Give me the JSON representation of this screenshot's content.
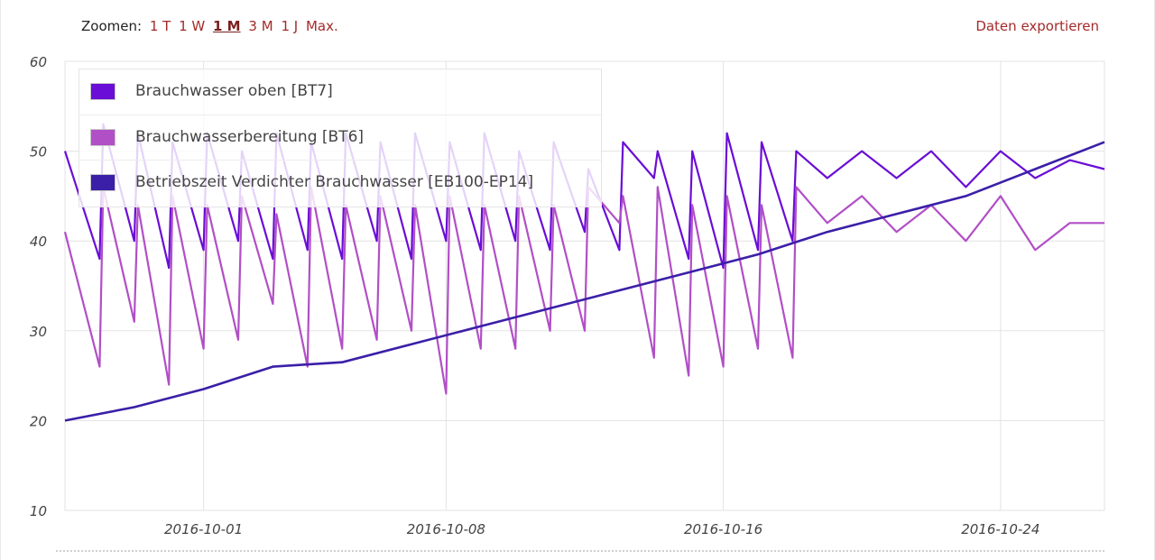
{
  "toolbar": {
    "zoom_label": "Zoomen:",
    "zoom_options": [
      "1 T",
      "1 W",
      "1 M",
      "3 M",
      "1 J",
      "Max."
    ],
    "zoom_active": "1 M",
    "export_label": "Daten exportieren"
  },
  "colors": {
    "link": "#a52a2a",
    "series_bt7": "#6a0dd6",
    "series_bt6": "#b14fc6",
    "series_runtime": "#3b1fa8",
    "grid": "#e3e3e3"
  },
  "chart_data": {
    "type": "line",
    "title": "",
    "xlabel": "",
    "ylabel": "",
    "ylim": [
      10,
      60
    ],
    "yticks": [
      10,
      20,
      30,
      40,
      50,
      60
    ],
    "x_range": [
      "2016-09-27",
      "2016-10-27"
    ],
    "xticks": [
      "2016-10-01",
      "2016-10-08",
      "2016-10-16",
      "2016-10-24"
    ],
    "grid": true,
    "legend_position": "top-left",
    "series": [
      {
        "name": "Brauchwasser oben [BT7]",
        "color": "#6a0dd6",
        "x": [
          "2016-09-27",
          "2016-09-28",
          "2016-09-28",
          "2016-09-29",
          "2016-09-29",
          "2016-09-30",
          "2016-09-30",
          "2016-10-01",
          "2016-10-01",
          "2016-10-02",
          "2016-10-02",
          "2016-10-03",
          "2016-10-03",
          "2016-10-04",
          "2016-10-04",
          "2016-10-05",
          "2016-10-05",
          "2016-10-06",
          "2016-10-06",
          "2016-10-07",
          "2016-10-07",
          "2016-10-08",
          "2016-10-08",
          "2016-10-09",
          "2016-10-09",
          "2016-10-10",
          "2016-10-10",
          "2016-10-11",
          "2016-10-11",
          "2016-10-12",
          "2016-10-12",
          "2016-10-13",
          "2016-10-13",
          "2016-10-14",
          "2016-10-14",
          "2016-10-15",
          "2016-10-15",
          "2016-10-16",
          "2016-10-16",
          "2016-10-17",
          "2016-10-17",
          "2016-10-18",
          "2016-10-18",
          "2016-10-19",
          "2016-10-20",
          "2016-10-21",
          "2016-10-22",
          "2016-10-23",
          "2016-10-24",
          "2016-10-25",
          "2016-10-26",
          "2016-10-27"
        ],
        "values": [
          50,
          38,
          53,
          40,
          52,
          37,
          51,
          39,
          52,
          40,
          50,
          38,
          52,
          39,
          51,
          38,
          52,
          40,
          51,
          38,
          52,
          40,
          51,
          39,
          52,
          40,
          50,
          39,
          51,
          41,
          48,
          39,
          51,
          47,
          50,
          38,
          50,
          37,
          52,
          39,
          51,
          40,
          50,
          47,
          50,
          47,
          50,
          46,
          50,
          47,
          49,
          48
        ]
      },
      {
        "name": "Brauchwasserbereitung [BT6]",
        "color": "#b14fc6",
        "x": [
          "2016-09-27",
          "2016-09-28",
          "2016-09-28",
          "2016-09-29",
          "2016-09-29",
          "2016-09-30",
          "2016-09-30",
          "2016-10-01",
          "2016-10-01",
          "2016-10-02",
          "2016-10-02",
          "2016-10-03",
          "2016-10-03",
          "2016-10-04",
          "2016-10-04",
          "2016-10-05",
          "2016-10-05",
          "2016-10-06",
          "2016-10-06",
          "2016-10-07",
          "2016-10-07",
          "2016-10-08",
          "2016-10-08",
          "2016-10-09",
          "2016-10-09",
          "2016-10-10",
          "2016-10-10",
          "2016-10-11",
          "2016-10-11",
          "2016-10-12",
          "2016-10-12",
          "2016-10-13",
          "2016-10-13",
          "2016-10-14",
          "2016-10-14",
          "2016-10-15",
          "2016-10-15",
          "2016-10-16",
          "2016-10-16",
          "2016-10-17",
          "2016-10-17",
          "2016-10-18",
          "2016-10-18",
          "2016-10-19",
          "2016-10-20",
          "2016-10-21",
          "2016-10-22",
          "2016-10-23",
          "2016-10-24",
          "2016-10-25",
          "2016-10-26",
          "2016-10-27"
        ],
        "values": [
          41,
          26,
          46,
          31,
          44,
          24,
          45,
          28,
          44,
          29,
          45,
          33,
          43,
          26,
          46,
          28,
          44,
          29,
          45,
          30,
          44,
          23,
          45,
          28,
          44,
          28,
          45,
          30,
          44,
          30,
          46,
          42,
          45,
          27,
          46,
          25,
          44,
          26,
          45,
          28,
          44,
          27,
          46,
          42,
          45,
          41,
          44,
          40,
          45,
          39,
          42,
          42
        ]
      },
      {
        "name": "Betriebszeit Verdichter Brauchwasser [EB100-EP14]",
        "color": "#3b1fa8",
        "x": [
          "2016-09-27",
          "2016-09-29",
          "2016-10-01",
          "2016-10-03",
          "2016-10-05",
          "2016-10-07",
          "2016-10-09",
          "2016-10-11",
          "2016-10-13",
          "2016-10-15",
          "2016-10-17",
          "2016-10-19",
          "2016-10-21",
          "2016-10-23",
          "2016-10-25",
          "2016-10-27"
        ],
        "values": [
          20,
          21.5,
          23.5,
          26,
          26.5,
          28.5,
          30.5,
          32.5,
          34.5,
          36.5,
          38.5,
          41,
          43,
          45,
          48,
          51
        ]
      }
    ]
  }
}
